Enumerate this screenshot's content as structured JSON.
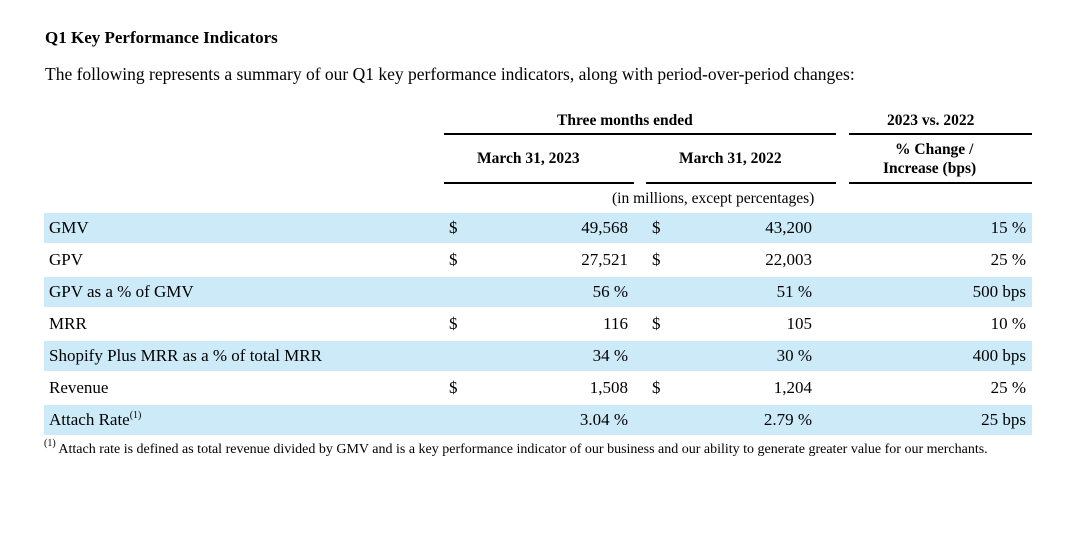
{
  "title": "Q1 Key Performance Indicators",
  "intro": "The following represents a summary of our Q1 key performance indicators, along with period-over-period changes:",
  "header": {
    "three_months": "Three months ended",
    "comparison": "2023 vs. 2022",
    "col1": "March 31, 2023",
    "col2": "March 31, 2022",
    "change_line1": "% Change /",
    "change_line2": "Increase (bps)",
    "units_note": "(in millions, except percentages)"
  },
  "rows": [
    {
      "label": "GMV",
      "sup": "",
      "d1": "$",
      "v1": "49,568",
      "d2": "$",
      "v2": "43,200",
      "chg": "15 %",
      "shaded": true
    },
    {
      "label": "GPV",
      "sup": "",
      "d1": "$",
      "v1": "27,521",
      "d2": "$",
      "v2": "22,003",
      "chg": "25 %",
      "shaded": false
    },
    {
      "label": "GPV as a % of GMV",
      "sup": "",
      "d1": "",
      "v1": "56 %",
      "d2": "",
      "v2": "51 %",
      "chg": "500 bps",
      "shaded": true
    },
    {
      "label": "MRR",
      "sup": "",
      "d1": "$",
      "v1": "116",
      "d2": "$",
      "v2": "105",
      "chg": "10 %",
      "shaded": false
    },
    {
      "label": "Shopify Plus MRR as a % of total MRR",
      "sup": "",
      "d1": "",
      "v1": "34 %",
      "d2": "",
      "v2": "30 %",
      "chg": "400 bps",
      "shaded": true
    },
    {
      "label": "Revenue",
      "sup": "",
      "d1": "$",
      "v1": "1,508",
      "d2": "$",
      "v2": "1,204",
      "chg": "25 %",
      "shaded": false
    },
    {
      "label": "Attach Rate",
      "sup": "(1)",
      "d1": "",
      "v1": "3.04 %",
      "d2": "",
      "v2": "2.79 %",
      "chg": "25 bps",
      "shaded": true
    }
  ],
  "footnote": {
    "marker": "(1)",
    "text": "Attach rate is defined as total revenue divided by GMV and is a key performance indicator of our business and our ability to generate greater value for our merchants."
  }
}
